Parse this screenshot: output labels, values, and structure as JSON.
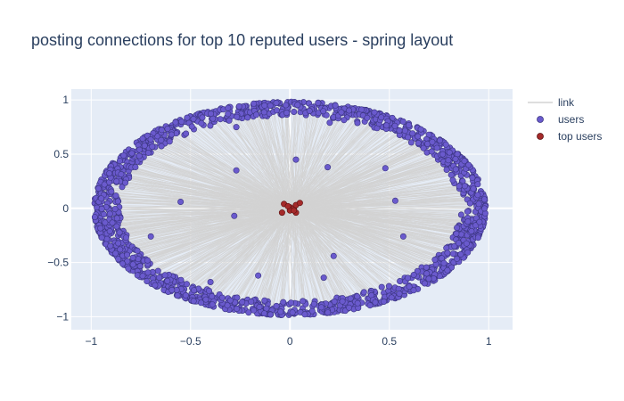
{
  "chart_data": {
    "type": "scatter",
    "title": "posting connections for top 10 reputed users - spring layout",
    "xlabel": "",
    "ylabel": "",
    "xlim": [
      -1.1,
      1.12
    ],
    "ylim": [
      -1.12,
      1.1
    ],
    "x_ticks": [
      {
        "value": -1,
        "label": "−1"
      },
      {
        "value": -0.5,
        "label": "−0.5"
      },
      {
        "value": 0,
        "label": "0"
      },
      {
        "value": 0.5,
        "label": "0.5"
      },
      {
        "value": 1,
        "label": "1"
      }
    ],
    "y_ticks": [
      {
        "value": 1,
        "label": "1"
      },
      {
        "value": 0.5,
        "label": "0.5"
      },
      {
        "value": 0,
        "label": "0"
      },
      {
        "value": -0.5,
        "label": "−0.5"
      },
      {
        "value": -1,
        "label": "−1"
      }
    ],
    "grid": true,
    "legend_position": "top-right",
    "colors": {
      "plot_bg": "#e5ecf6",
      "grid": "#ffffff",
      "link": "#d3d3d3",
      "users": "#6a5acd",
      "users_edge": "#3b3580",
      "top_users": "#a52a2a",
      "top_users_edge": "#5a1212"
    },
    "series": [
      {
        "name": "link",
        "kind": "lines",
        "description_of_pattern": "lines from each user to top users"
      },
      {
        "name": "users",
        "kind": "markers",
        "ring": {
          "center": [
            0,
            0
          ],
          "radius_x": 0.985,
          "radius_y": 0.985,
          "thickness": 0.13
        },
        "interior_points": [
          [
            -0.27,
            0.75
          ],
          [
            0.2,
            0.79
          ],
          [
            -0.27,
            0.35
          ],
          [
            0.03,
            0.45
          ],
          [
            0.19,
            0.38
          ],
          [
            0.48,
            0.37
          ],
          [
            -0.55,
            0.06
          ],
          [
            -0.28,
            -0.07
          ],
          [
            0.53,
            0.07
          ],
          [
            -0.7,
            -0.26
          ],
          [
            0.57,
            -0.26
          ],
          [
            0.22,
            -0.44
          ],
          [
            -0.16,
            -0.62
          ],
          [
            0.17,
            -0.64
          ],
          [
            -0.4,
            -0.68
          ]
        ]
      },
      {
        "name": "top users",
        "kind": "markers",
        "points": [
          [
            -0.04,
            -0.04
          ],
          [
            -0.03,
            0.04
          ],
          [
            0.0,
            0.01
          ],
          [
            0.02,
            0.0
          ],
          [
            0.03,
            0.03
          ],
          [
            0.05,
            0.05
          ],
          [
            0.0,
            -0.02
          ],
          [
            0.03,
            -0.04
          ],
          [
            -0.01,
            0.02
          ],
          [
            0.02,
            -0.02
          ]
        ]
      }
    ]
  }
}
